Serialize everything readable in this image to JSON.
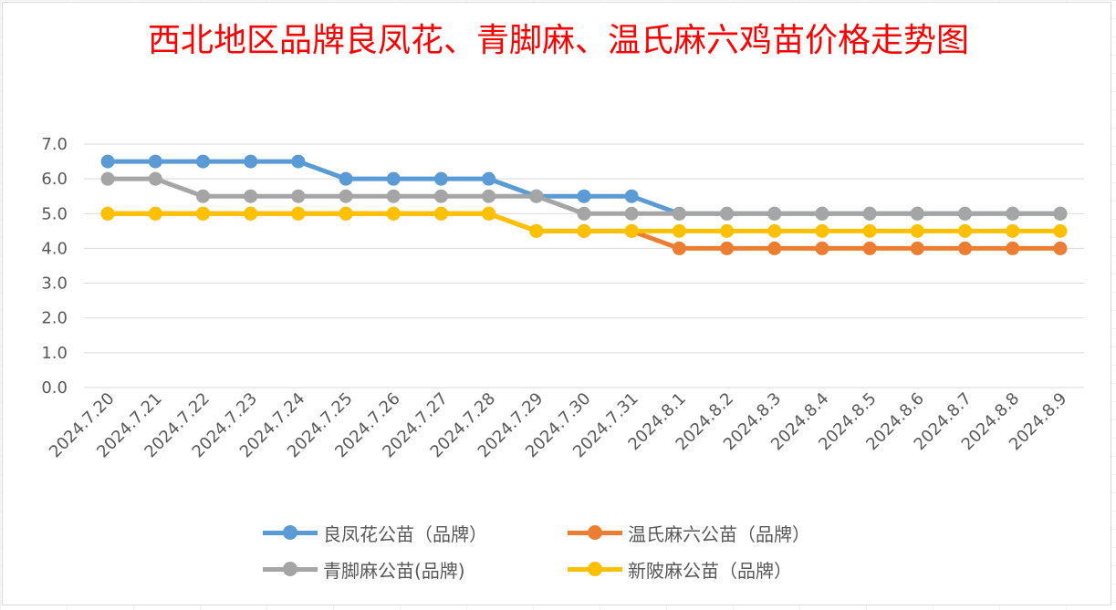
{
  "chart_data": {
    "type": "line",
    "title": "西北地区品牌良凤花、青脚麻、温氏麻六鸡苗价格走势图",
    "xlabel": "",
    "ylabel": "",
    "ylim": [
      0,
      7
    ],
    "yticks": [
      "7.0",
      "6.0",
      "5.0",
      "4.0",
      "3.0",
      "2.0",
      "1.0",
      "0.0"
    ],
    "grid": true,
    "legend_position": "bottom",
    "categories": [
      "2024.7.20",
      "2024.7.21",
      "2024.7.22",
      "2024.7.23",
      "2024.7.24",
      "2024.7.25",
      "2024.7.26",
      "2024.7.27",
      "2024.7.28",
      "2024.7.29",
      "2024.7.30",
      "2024.7.31",
      "2024.8.1",
      "2024.8.2",
      "2024.8.3",
      "2024.8.4",
      "2024.8.5",
      "2024.8.6",
      "2024.8.7",
      "2024.8.8",
      "2024.8.9"
    ],
    "series": [
      {
        "name": "良凤花公苗（品牌）",
        "color": "#5b9bd5",
        "values": [
          6.5,
          6.5,
          6.5,
          6.5,
          6.5,
          6.0,
          6.0,
          6.0,
          6.0,
          5.5,
          5.5,
          5.5,
          5.0,
          5.0,
          5.0,
          5.0,
          5.0,
          5.0,
          5.0,
          5.0,
          5.0
        ]
      },
      {
        "name": "温氏麻六公苗（品牌）",
        "color": "#ed7d31",
        "values": [
          5.0,
          5.0,
          5.0,
          5.0,
          5.0,
          5.0,
          5.0,
          5.0,
          5.0,
          4.5,
          4.5,
          4.5,
          4.0,
          4.0,
          4.0,
          4.0,
          4.0,
          4.0,
          4.0,
          4.0,
          4.0
        ]
      },
      {
        "name": "青脚麻公苗(品牌)",
        "color": "#a5a5a5",
        "values": [
          6.0,
          6.0,
          5.5,
          5.5,
          5.5,
          5.5,
          5.5,
          5.5,
          5.5,
          5.5,
          5.0,
          5.0,
          5.0,
          5.0,
          5.0,
          5.0,
          5.0,
          5.0,
          5.0,
          5.0,
          5.0
        ]
      },
      {
        "name": "新陂麻公苗（品牌）",
        "color": "#ffc000",
        "values": [
          5.0,
          5.0,
          5.0,
          5.0,
          5.0,
          5.0,
          5.0,
          5.0,
          5.0,
          4.5,
          4.5,
          4.5,
          4.5,
          4.5,
          4.5,
          4.5,
          4.5,
          4.5,
          4.5,
          4.5,
          4.5
        ]
      }
    ]
  }
}
